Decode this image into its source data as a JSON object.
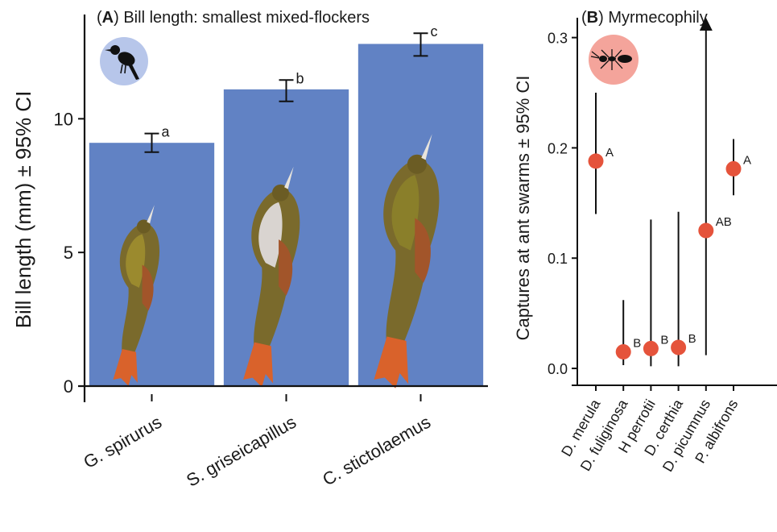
{
  "panel_a": {
    "label_letter": "A",
    "label_text": "Bill length: smallest mixed-flockers",
    "silhouette_icon": "bird-silhouette-icon"
  },
  "panel_b": {
    "label_letter": "B",
    "label_text": "Myrmecophily",
    "silhouette_icon": "ant-silhouette-icon"
  },
  "colors": {
    "bar": "#6182c4",
    "point": "#e5533b",
    "bird_badge": "#b7c6ea",
    "ant_badge": "#f4a49b"
  },
  "chart_data": [
    {
      "type": "bar",
      "title": "Bill length: smallest mixed-flockers",
      "xlabel": "",
      "ylabel": "Bill length (mm) ± 95% CI",
      "categories": [
        "G. spirurus",
        "S. griseicapillus",
        "C. stictolaemus"
      ],
      "values": [
        9.1,
        11.1,
        12.8
      ],
      "ci_low": [
        8.75,
        10.65,
        12.35
      ],
      "ci_high": [
        9.45,
        11.45,
        13.2
      ],
      "group_letters": [
        "a",
        "b",
        "c"
      ],
      "ylim": [
        0,
        13.9
      ],
      "yticks": [
        0,
        5,
        10
      ],
      "grid": false,
      "bar_images": [
        "woodcreeper-illustration",
        "woodcreeper-illustration",
        "woodcreeper-illustration"
      ]
    },
    {
      "type": "scatter",
      "title": "Myrmecophily",
      "xlabel": "",
      "ylabel": "Captures at ant swarms ± 95% CI",
      "categories": [
        "D. merula",
        "D. fuliginosa",
        "H perrotii",
        "D. certhia",
        "D. picumnus",
        "P. albifrons"
      ],
      "values": [
        0.188,
        0.015,
        0.018,
        0.019,
        0.125,
        0.181
      ],
      "ci_low": [
        0.14,
        0.003,
        0.002,
        0.002,
        0.012,
        0.157
      ],
      "ci_high": [
        0.25,
        0.062,
        0.135,
        0.142,
        0.318,
        0.208
      ],
      "ci_high_open": [
        false,
        false,
        false,
        false,
        true,
        false
      ],
      "group_letters": [
        "A",
        "B",
        "B",
        "B",
        "AB",
        "A"
      ],
      "ylim": [
        -0.008,
        0.318
      ],
      "yticks": [
        0.0,
        0.1,
        0.2,
        0.3
      ],
      "ytick_labels": [
        "0.0",
        "0.1",
        "0.2",
        "0.3"
      ],
      "grid": false
    }
  ]
}
